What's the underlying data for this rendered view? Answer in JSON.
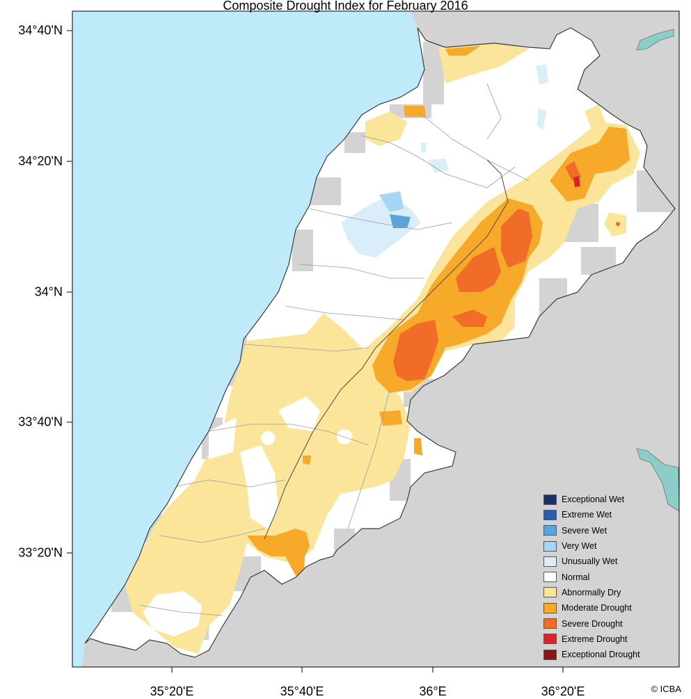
{
  "title": "Composite Drought Index for February 2016",
  "y_axis": {
    "ticks": [
      {
        "label": "34°40'N",
        "lat": 34.6667
      },
      {
        "label": "34°20'N",
        "lat": 34.3333
      },
      {
        "label": "34°N",
        "lat": 34.0
      },
      {
        "label": "33°40'N",
        "lat": 33.6667
      },
      {
        "label": "33°20'N",
        "lat": 33.3333
      }
    ]
  },
  "x_axis": {
    "ticks": [
      {
        "label": "35°20'E",
        "lon": 35.3333
      },
      {
        "label": "35°40'E",
        "lon": 35.6667
      },
      {
        "label": "36°E",
        "lon": 36.0
      },
      {
        "label": "36°20'E",
        "lon": 36.3333
      }
    ]
  },
  "legend": [
    {
      "label": "Exceptional Wet",
      "color": "#1c2f66"
    },
    {
      "label": "Extreme Wet",
      "color": "#2b5eab"
    },
    {
      "label": "Severe Wet",
      "color": "#5aa3dc"
    },
    {
      "label": "Very Wet",
      "color": "#a4d7f3"
    },
    {
      "label": "Unusually Wet",
      "color": "#d9eef8"
    },
    {
      "label": "Normal",
      "color": "#ffffff"
    },
    {
      "label": "Abnormally Dry",
      "color": "#fbe59b"
    },
    {
      "label": "Moderate Drought",
      "color": "#f7a92a"
    },
    {
      "label": "Severe Drought",
      "color": "#f26c29"
    },
    {
      "label": "Extreme Drought",
      "color": "#d7262b"
    },
    {
      "label": "Exceptional Drought",
      "color": "#8b1515"
    }
  ],
  "credit": "© ICBA",
  "colors": {
    "sea": "#bfeafa",
    "land_outside": "#d3d3d3",
    "lake": "#8ccdc9"
  }
}
